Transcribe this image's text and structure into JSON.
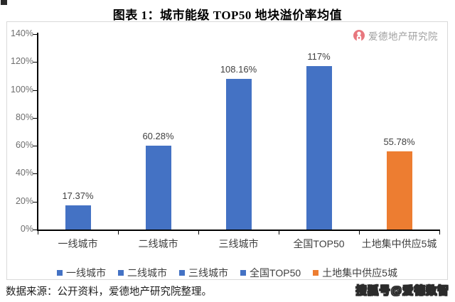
{
  "title": "图表 1：城市能级 TOP50 地块溢价率均值",
  "logo": {
    "icon": "person-circle-icon",
    "icon_color": "#E8777E",
    "text": "爱德地产研究院"
  },
  "chart_data": {
    "type": "bar",
    "title": "图表 1：城市能级 TOP50 地块溢价率均值",
    "categories": [
      "一线城市",
      "二线城市",
      "三线城市",
      "全国TOP50",
      "土地集中供应5城"
    ],
    "values": [
      17.37,
      60.28,
      108.16,
      117,
      55.78
    ],
    "labels": [
      "17.37%",
      "60.28%",
      "108.16%",
      "117%",
      "55.78%"
    ],
    "bar_colors": [
      "#4472C4",
      "#4472C4",
      "#4472C4",
      "#4472C4",
      "#ED7D31"
    ],
    "xlabel": "",
    "ylabel": "",
    "ylim": [
      0,
      140
    ],
    "ytick_step": 20,
    "ytick_labels": [
      "0%",
      "20%",
      "40%",
      "60%",
      "80%",
      "100%",
      "120%",
      "140%"
    ],
    "grid": false,
    "legend_position": "bottom",
    "legend": [
      {
        "label": "一线城市",
        "color": "#4472C4"
      },
      {
        "label": "二线城市",
        "color": "#4472C4"
      },
      {
        "label": "三线城市",
        "color": "#4472C4"
      },
      {
        "label": "全国TOP50",
        "color": "#4472C4"
      },
      {
        "label": "土地集中供应5城",
        "color": "#ED7D31"
      }
    ]
  },
  "footer": {
    "source": "数据来源：公开资料，爱德地产研究院整理。",
    "watermark": "搜狐号@爱德数智"
  }
}
